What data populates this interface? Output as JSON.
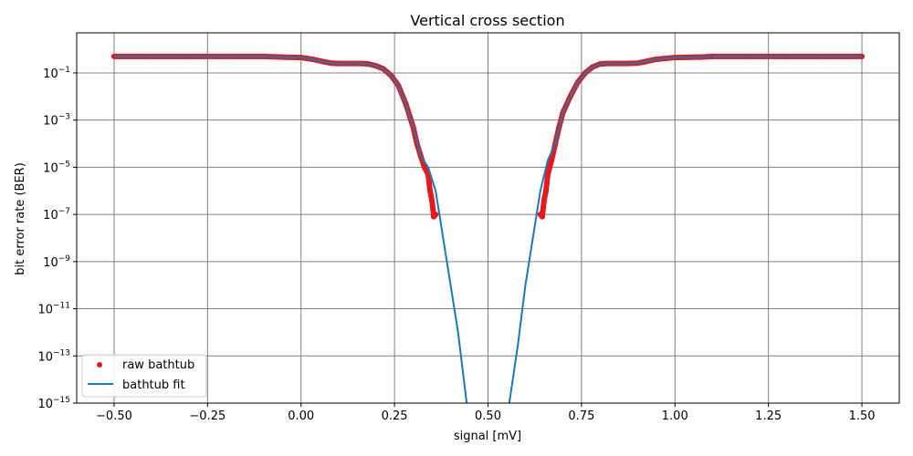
{
  "chart_data": {
    "type": "line",
    "title": "Vertical cross section",
    "xlabel": "signal [mV]",
    "ylabel": "bit error rate (BER)",
    "xlim": [
      -0.6,
      1.6
    ],
    "ylim_log10": [
      -15,
      0.7
    ],
    "yscale": "log",
    "grid": true,
    "legend_position": "lower-left",
    "x_ticks": [
      -0.5,
      -0.25,
      0.0,
      0.25,
      0.5,
      0.75,
      1.0,
      1.25,
      1.5
    ],
    "x_tick_labels": [
      "−0.50",
      "−0.25",
      "0.00",
      "0.25",
      "0.50",
      "0.75",
      "1.00",
      "1.25",
      "1.50"
    ],
    "y_tick_exponents": [
      -1,
      -3,
      -5,
      -7,
      -9,
      -11,
      -13,
      -15
    ],
    "y_tick_base": "10",
    "colors": {
      "raw": "#e41a1c",
      "fit": "#1f77b4",
      "grid": "#808080"
    },
    "series": [
      {
        "name": "raw bathtub",
        "style": "markers",
        "x": [
          -0.5,
          -0.4,
          -0.3,
          -0.2,
          -0.1,
          -0.05,
          0.0,
          0.03,
          0.06,
          0.08,
          0.1,
          0.13,
          0.16,
          0.18,
          0.2,
          0.22,
          0.24,
          0.26,
          0.28,
          0.3,
          0.31,
          0.32,
          0.33,
          0.34,
          0.345,
          0.35,
          0.355,
          0.36,
          0.64,
          0.645,
          0.65,
          0.655,
          0.66,
          0.67,
          0.68,
          0.69,
          0.7,
          0.72,
          0.74,
          0.76,
          0.78,
          0.8,
          0.82,
          0.84,
          0.87,
          0.9,
          0.92,
          0.95,
          1.0,
          1.07,
          1.1,
          1.2,
          1.3,
          1.4,
          1.5
        ],
        "y": [
          0.5,
          0.5,
          0.5,
          0.5,
          0.5,
          0.47,
          0.45,
          0.38,
          0.3,
          0.26,
          0.25,
          0.25,
          0.25,
          0.24,
          0.2,
          0.15,
          0.08,
          0.03,
          0.005,
          0.0005,
          0.0001,
          3e-05,
          1e-05,
          5e-06,
          1e-06,
          4e-07,
          8e-08,
          1e-07,
          1e-07,
          8e-08,
          4e-07,
          1e-06,
          5e-06,
          2e-05,
          0.0001,
          0.0005,
          0.002,
          0.01,
          0.04,
          0.1,
          0.18,
          0.24,
          0.25,
          0.25,
          0.25,
          0.26,
          0.3,
          0.38,
          0.45,
          0.47,
          0.5,
          0.5,
          0.5,
          0.5,
          0.5
        ]
      },
      {
        "name": "bathtub fit",
        "style": "line",
        "x": [
          -0.5,
          -0.4,
          -0.3,
          -0.2,
          -0.1,
          -0.05,
          0.0,
          0.03,
          0.06,
          0.08,
          0.1,
          0.13,
          0.16,
          0.18,
          0.2,
          0.22,
          0.24,
          0.26,
          0.28,
          0.3,
          0.32,
          0.34,
          0.36,
          0.38,
          0.4,
          0.42,
          0.443,
          0.557,
          0.58,
          0.6,
          0.62,
          0.64,
          0.66,
          0.68,
          0.7,
          0.72,
          0.74,
          0.76,
          0.78,
          0.8,
          0.82,
          0.84,
          0.87,
          0.9,
          0.92,
          0.95,
          1.0,
          1.07,
          1.1,
          1.2,
          1.3,
          1.4,
          1.5
        ],
        "y": [
          0.5,
          0.5,
          0.5,
          0.5,
          0.5,
          0.47,
          0.45,
          0.38,
          0.3,
          0.26,
          0.25,
          0.25,
          0.25,
          0.24,
          0.2,
          0.15,
          0.08,
          0.03,
          0.005,
          0.0005,
          3e-05,
          1e-05,
          1e-06,
          1e-08,
          1e-10,
          1e-12,
          1e-15,
          1e-15,
          3e-13,
          1e-10,
          1e-08,
          1e-06,
          2e-05,
          0.0001,
          0.002,
          0.01,
          0.04,
          0.1,
          0.18,
          0.24,
          0.25,
          0.25,
          0.25,
          0.26,
          0.3,
          0.38,
          0.45,
          0.47,
          0.5,
          0.5,
          0.5,
          0.5,
          0.5
        ]
      }
    ]
  }
}
